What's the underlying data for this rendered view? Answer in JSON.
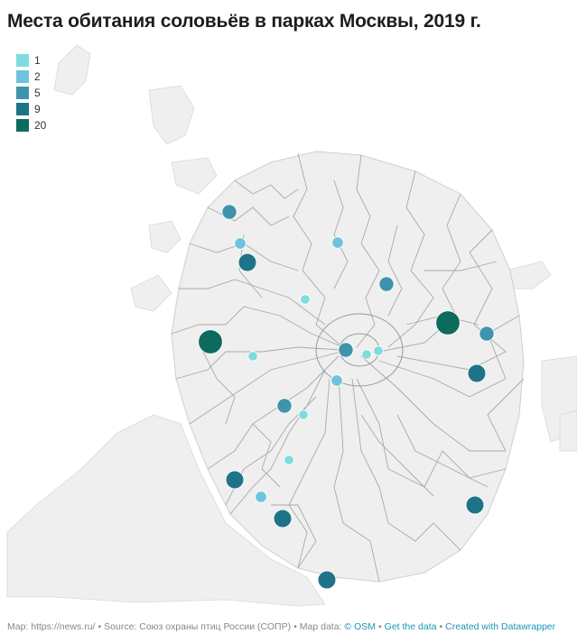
{
  "title": "Места обитания соловьёв в парках Москвы, 2019 г.",
  "legend": [
    {
      "label": "1",
      "color": "#7fdcde"
    },
    {
      "label": "2",
      "color": "#6cc4dc"
    },
    {
      "label": "5",
      "color": "#3f93ad"
    },
    {
      "label": "9",
      "color": "#1f7389"
    },
    {
      "label": "20",
      "color": "#0d6b5e"
    }
  ],
  "footer": {
    "map_label": "Map: https://news.ru/",
    "source_label": "Source: Союз охраны птиц России (СОПР)",
    "mapdata_label": "Map data:",
    "osm_link": "© OSM",
    "get_data_link": "Get the data",
    "created_link": "Created with Datawrapper"
  },
  "sightings": [
    {
      "count": 5
    },
    {
      "count": 2
    },
    {
      "count": 9
    },
    {
      "count": 2
    },
    {
      "count": 1
    },
    {
      "count": 5
    },
    {
      "count": 20
    },
    {
      "count": 5
    },
    {
      "count": 20
    },
    {
      "count": 1
    },
    {
      "count": 5
    },
    {
      "count": 1
    },
    {
      "count": 1
    },
    {
      "count": 2
    },
    {
      "count": 5
    },
    {
      "count": 1
    },
    {
      "count": 9
    },
    {
      "count": 1
    },
    {
      "count": 9
    },
    {
      "count": 2
    },
    {
      "count": 9
    },
    {
      "count": 9
    },
    {
      "count": 9
    },
    {
      "count": 2
    }
  ]
}
